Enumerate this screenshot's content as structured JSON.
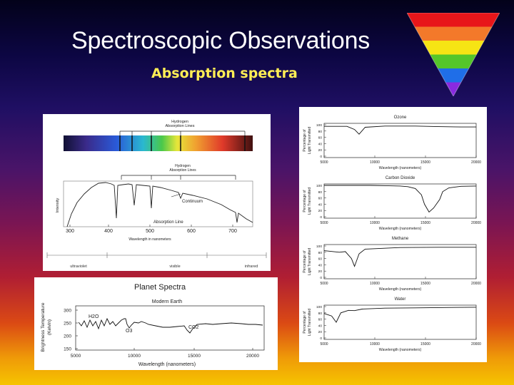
{
  "slide": {
    "title": "Spectroscopic Observations",
    "subtitle": "Absorption spectra"
  },
  "prism_colors": [
    "#e8161a",
    "#f3792a",
    "#f6e414",
    "#55c62a",
    "#1f6ee8",
    "#8a2ae0"
  ],
  "hydrogen_figure": {
    "top_label": [
      "Hydrogen",
      "Absorption Lines"
    ],
    "mid_label": [
      "Hydrogen",
      "Absorption Lines"
    ],
    "continuum_label": "Continuum",
    "line_label": "Absorption Line",
    "y_label": "Intensity",
    "x_ticks": [
      "300",
      "400",
      "500",
      "600",
      "700"
    ],
    "x_label": "Wavelength in nanometers",
    "bands": [
      "ultraviolet",
      "visible",
      "infrared"
    ]
  },
  "planet_figure": {
    "title": "Planet Spectra",
    "plot_title": "Modern Earth",
    "y_label": [
      "Brightness Temperature",
      "(Kelvin)"
    ],
    "y_ticks": [
      "300",
      "250",
      "200",
      "150"
    ],
    "x_ticks": [
      "5000",
      "10000",
      "15000",
      "20000"
    ],
    "x_label": "Wavelength (nanometers)",
    "annotations": [
      "H2O",
      "O3",
      "CO2"
    ]
  },
  "gas_figure": {
    "y_label": [
      "Percentage of",
      "Light Transmitted"
    ],
    "y_ticks": [
      "100",
      "80",
      "60",
      "40",
      "20",
      "0"
    ],
    "x_ticks": [
      "5000",
      "10000",
      "15000",
      "20000"
    ],
    "x_label": "Wavelength (nanometers)",
    "plots": [
      {
        "title": "Ozone"
      },
      {
        "title": "Carbon Dioxide"
      },
      {
        "title": "Methane"
      },
      {
        "title": "Water"
      }
    ]
  }
}
